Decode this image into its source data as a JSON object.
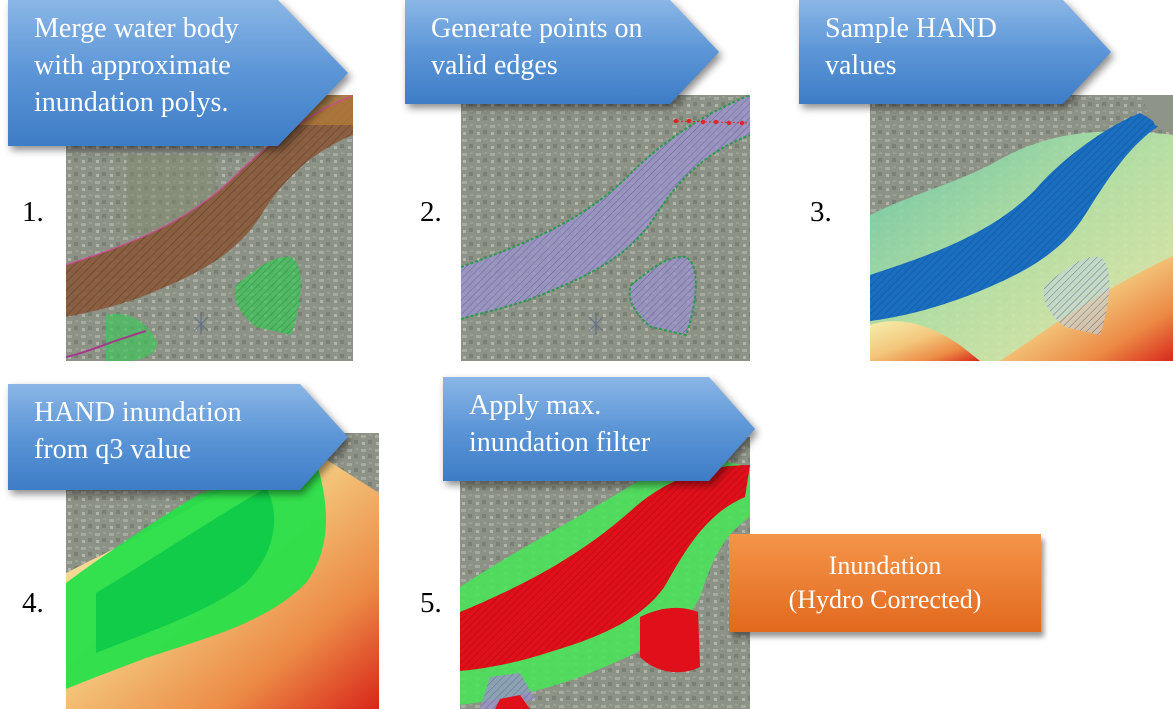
{
  "steps": [
    {
      "number": "1.",
      "lines": [
        "Merge water body",
        "with approximate",
        "inundation polys."
      ]
    },
    {
      "number": "2.",
      "lines": [
        "Generate points on",
        "valid edges"
      ]
    },
    {
      "number": "3.",
      "lines": [
        "Sample HAND",
        "values"
      ]
    },
    {
      "number": "4.",
      "lines": [
        "HAND inundation",
        "from q3 value"
      ]
    },
    {
      "number": "5.",
      "lines": [
        "Apply max.",
        "inundation filter"
      ]
    }
  ],
  "result": {
    "lines": [
      "Inundation",
      "(Hydro Corrected)"
    ]
  },
  "colors": {
    "callout_top": "#8ab6e6",
    "callout_bottom": "#3d7cc6",
    "result_box": "#ec7a32",
    "map_base": "#8f9488",
    "water_brown": "#8a5a3a",
    "approx_green": "#3fc45a",
    "water_lavender": "#9a94c8",
    "edge_point_red": "#e02424",
    "hand_blue": "#1a6ec0",
    "hand_green": "#28e04a",
    "filter_red": "#e0101a",
    "hand_warm_low": "#f2e39a",
    "hand_warm_high": "#d8261a"
  }
}
